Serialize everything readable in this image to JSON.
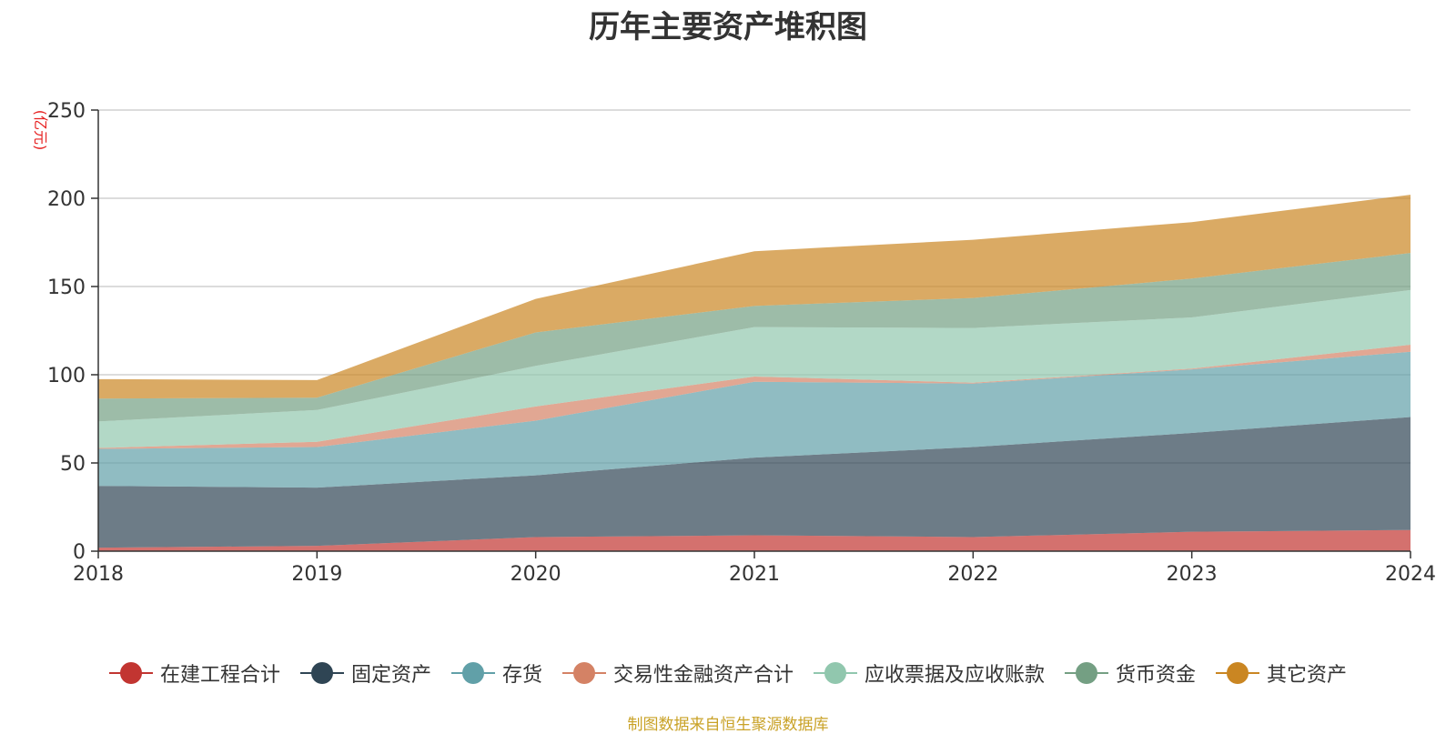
{
  "chart_data": {
    "type": "area",
    "stacked": true,
    "title": "历年主要资产堆积图",
    "ylabel": "(亿元)",
    "x": [
      "2018",
      "2019",
      "2020",
      "2021",
      "2022",
      "2023",
      "2024"
    ],
    "ylim": [
      0,
      250
    ],
    "yticks": [
      0,
      50,
      100,
      150,
      200,
      250
    ],
    "grid": true,
    "legend_position": "bottom",
    "series": [
      {
        "name": "在建工程合计",
        "color": "#c23531",
        "values": [
          2,
          3,
          8,
          9,
          8,
          11,
          12
        ]
      },
      {
        "name": "固定资产",
        "color": "#2f4554",
        "values": [
          35,
          33,
          35,
          44,
          51,
          56,
          64
        ]
      },
      {
        "name": "存货",
        "color": "#61a0a8",
        "values": [
          21,
          23,
          31,
          43,
          36,
          36,
          37
        ]
      },
      {
        "name": "交易性金融资产合计",
        "color": "#d48265",
        "values": [
          0.5,
          3,
          8,
          3,
          0.5,
          0.5,
          4
        ]
      },
      {
        "name": "应收票据及应收账款",
        "color": "#91c7ae",
        "values": [
          15,
          18,
          23,
          28,
          31,
          29,
          31
        ]
      },
      {
        "name": "货币资金",
        "color": "#749f83",
        "values": [
          13,
          7,
          19,
          12,
          17,
          22,
          21
        ]
      },
      {
        "name": "其它资产",
        "color": "#ca8622",
        "values": [
          11,
          10,
          19,
          31,
          33,
          32,
          33
        ]
      }
    ]
  },
  "footer": {
    "source": "制图数据来自恒生聚源数据库",
    "source_color": "#c9a227"
  },
  "axis_label_color": "#e62020"
}
